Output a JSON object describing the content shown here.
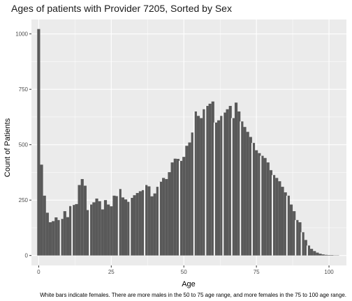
{
  "chart_data": {
    "type": "bar",
    "title": "Ages of patients with Provider 7205, Sorted by Sex",
    "xlabel": "Age",
    "ylabel": "Count of Patients",
    "caption": "White bars indicate females. There are more males in the 50 to 75 age range, and more females in the 75 to 100 age range.",
    "xlim": [
      -2.5,
      106
    ],
    "ylim": [
      -45,
      1065
    ],
    "x_ticks": [
      0,
      25,
      50,
      75,
      100
    ],
    "y_ticks": [
      0,
      250,
      500,
      750,
      1000
    ],
    "grid": true,
    "colors": {
      "bar": "#595959",
      "panel": "#ebebeb",
      "grid": "#ffffff",
      "gap": "#ffffff"
    },
    "x": [
      0,
      1,
      2,
      3,
      4,
      5,
      6,
      7,
      8,
      9,
      10,
      11,
      12,
      13,
      14,
      15,
      16,
      17,
      18,
      19,
      20,
      21,
      22,
      23,
      24,
      25,
      26,
      27,
      28,
      29,
      30,
      31,
      32,
      33,
      34,
      35,
      36,
      37,
      38,
      39,
      40,
      41,
      42,
      43,
      44,
      45,
      46,
      47,
      48,
      49,
      50,
      51,
      52,
      53,
      54,
      55,
      56,
      57,
      58,
      59,
      60,
      61,
      62,
      63,
      64,
      65,
      66,
      67,
      68,
      69,
      70,
      71,
      72,
      73,
      74,
      75,
      76,
      77,
      78,
      79,
      80,
      81,
      82,
      83,
      84,
      85,
      86,
      87,
      88,
      89,
      90,
      91,
      92,
      93,
      94,
      95,
      96,
      97,
      98,
      99,
      100,
      101,
      102,
      103,
      104
    ],
    "values": [
      1022,
      410,
      270,
      193,
      150,
      155,
      172,
      160,
      165,
      200,
      173,
      223,
      228,
      232,
      318,
      345,
      315,
      205,
      230,
      240,
      257,
      245,
      208,
      250,
      230,
      222,
      270,
      268,
      300,
      262,
      253,
      242,
      260,
      272,
      282,
      290,
      295,
      318,
      312,
      267,
      280,
      310,
      333,
      350,
      345,
      376,
      420,
      437,
      436,
      427,
      445,
      495,
      510,
      555,
      650,
      630,
      620,
      660,
      675,
      685,
      695,
      600,
      610,
      630,
      645,
      660,
      675,
      620,
      690,
      650,
      605,
      580,
      558,
      535,
      508,
      475,
      462,
      450,
      440,
      420,
      385,
      363,
      350,
      335,
      310,
      285,
      270,
      230,
      200,
      160,
      150,
      105,
      70,
      45,
      30,
      20,
      13,
      8,
      5,
      3,
      2,
      2,
      1,
      1,
      0
    ],
    "female_bar_x": [
      8,
      12,
      18,
      28,
      32,
      37,
      42,
      49,
      54,
      58,
      61,
      64,
      67,
      70,
      74,
      77,
      81,
      86,
      89,
      91,
      93
    ]
  }
}
